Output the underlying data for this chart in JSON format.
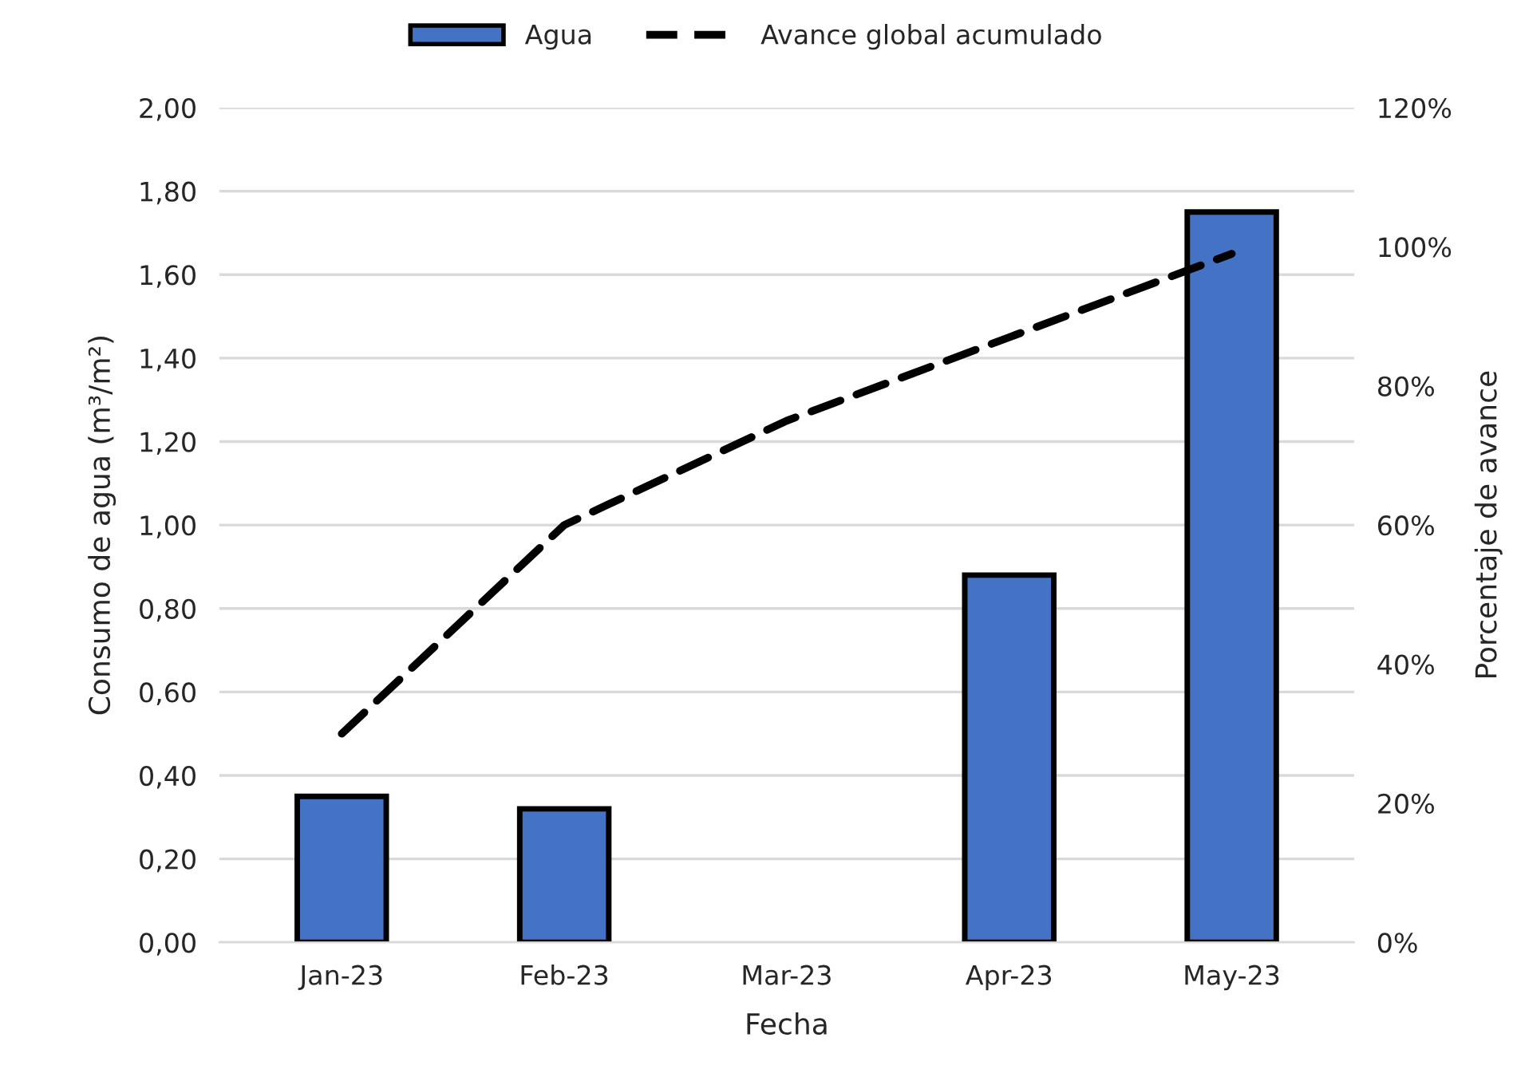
{
  "chart_data": {
    "type": "bar",
    "xlabel": "Fecha",
    "ylabel": "Consumo de agua (m³/m²)",
    "y2label": "Porcentaje de avance",
    "categories": [
      "Jan-23",
      "Feb-23",
      "Mar-23",
      "Apr-23",
      "May-23"
    ],
    "series": [
      {
        "name": "Agua",
        "color": "#4472c4",
        "values": [
          0.35,
          0.32,
          null,
          0.88,
          1.75
        ]
      },
      {
        "name": "Avance global acumulado",
        "type": "line",
        "axis": "y2",
        "color": "#000000",
        "line_style": "dashed",
        "values": [
          30,
          60,
          75,
          87,
          99
        ]
      }
    ],
    "ylim": [
      0,
      2
    ],
    "yticks": [
      {
        "value": 0,
        "label": "0,00"
      },
      {
        "value": 0.2,
        "label": "0,20"
      },
      {
        "value": 0.4,
        "label": "0,40"
      },
      {
        "value": 0.6,
        "label": "0,60"
      },
      {
        "value": 0.8,
        "label": "0,80"
      },
      {
        "value": 1.0,
        "label": "1,00"
      },
      {
        "value": 1.2,
        "label": "1,20"
      },
      {
        "value": 1.4,
        "label": "1,40"
      },
      {
        "value": 1.6,
        "label": "1,60"
      },
      {
        "value": 1.8,
        "label": "1,80"
      },
      {
        "value": 2.0,
        "label": "2,00"
      }
    ],
    "y2lim": [
      0,
      120
    ],
    "y2ticks": [
      {
        "value": 0,
        "label": "0%"
      },
      {
        "value": 20,
        "label": "20%"
      },
      {
        "value": 40,
        "label": "40%"
      },
      {
        "value": 60,
        "label": "60%"
      },
      {
        "value": 80,
        "label": "80%"
      },
      {
        "value": 100,
        "label": "100%"
      },
      {
        "value": 120,
        "label": "120%"
      }
    ],
    "grid": "y",
    "legend": "top"
  }
}
